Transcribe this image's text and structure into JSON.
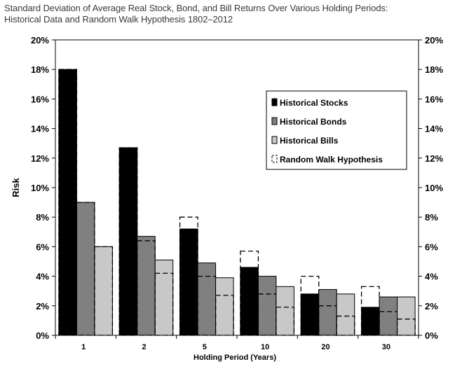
{
  "chart_data": {
    "type": "bar",
    "title": "Standard Deviation of Average Real Stock, Bond, and Bill Returns Over Various Holding Periods:",
    "subtitle": "Historical Data and Random Walk Hypothesis 1802–2012",
    "xlabel": "Holding Period (Years)",
    "ylabel": "Risk",
    "ylim": [
      0,
      20
    ],
    "yticks": [
      "0%",
      "2%",
      "4%",
      "6%",
      "8%",
      "10%",
      "12%",
      "14%",
      "16%",
      "18%",
      "20%"
    ],
    "categories": [
      "1",
      "2",
      "5",
      "10",
      "20",
      "30"
    ],
    "series": [
      {
        "name": "Historical Stocks",
        "color": "#000000",
        "values": [
          18.0,
          12.7,
          7.2,
          4.6,
          2.8,
          1.9
        ]
      },
      {
        "name": "Historical Bonds",
        "color": "#808080",
        "values": [
          9.0,
          6.7,
          4.9,
          4.0,
          3.1,
          2.6
        ]
      },
      {
        "name": "Historical Bills",
        "color": "#c8c8c8",
        "values": [
          6.0,
          5.1,
          3.9,
          3.3,
          2.8,
          2.6
        ]
      }
    ],
    "random_walk": {
      "name": "Random Walk Hypothesis",
      "style": "dashed-outline",
      "values": [
        [
          18.0,
          9.0,
          6.0
        ],
        [
          12.7,
          6.4,
          4.2
        ],
        [
          8.0,
          4.0,
          2.7
        ],
        [
          5.7,
          2.8,
          1.9
        ],
        [
          4.0,
          2.0,
          1.3
        ],
        [
          3.3,
          1.6,
          1.1
        ]
      ]
    },
    "grid": false,
    "legend_position": "top-right",
    "dual_y_axis": true
  }
}
